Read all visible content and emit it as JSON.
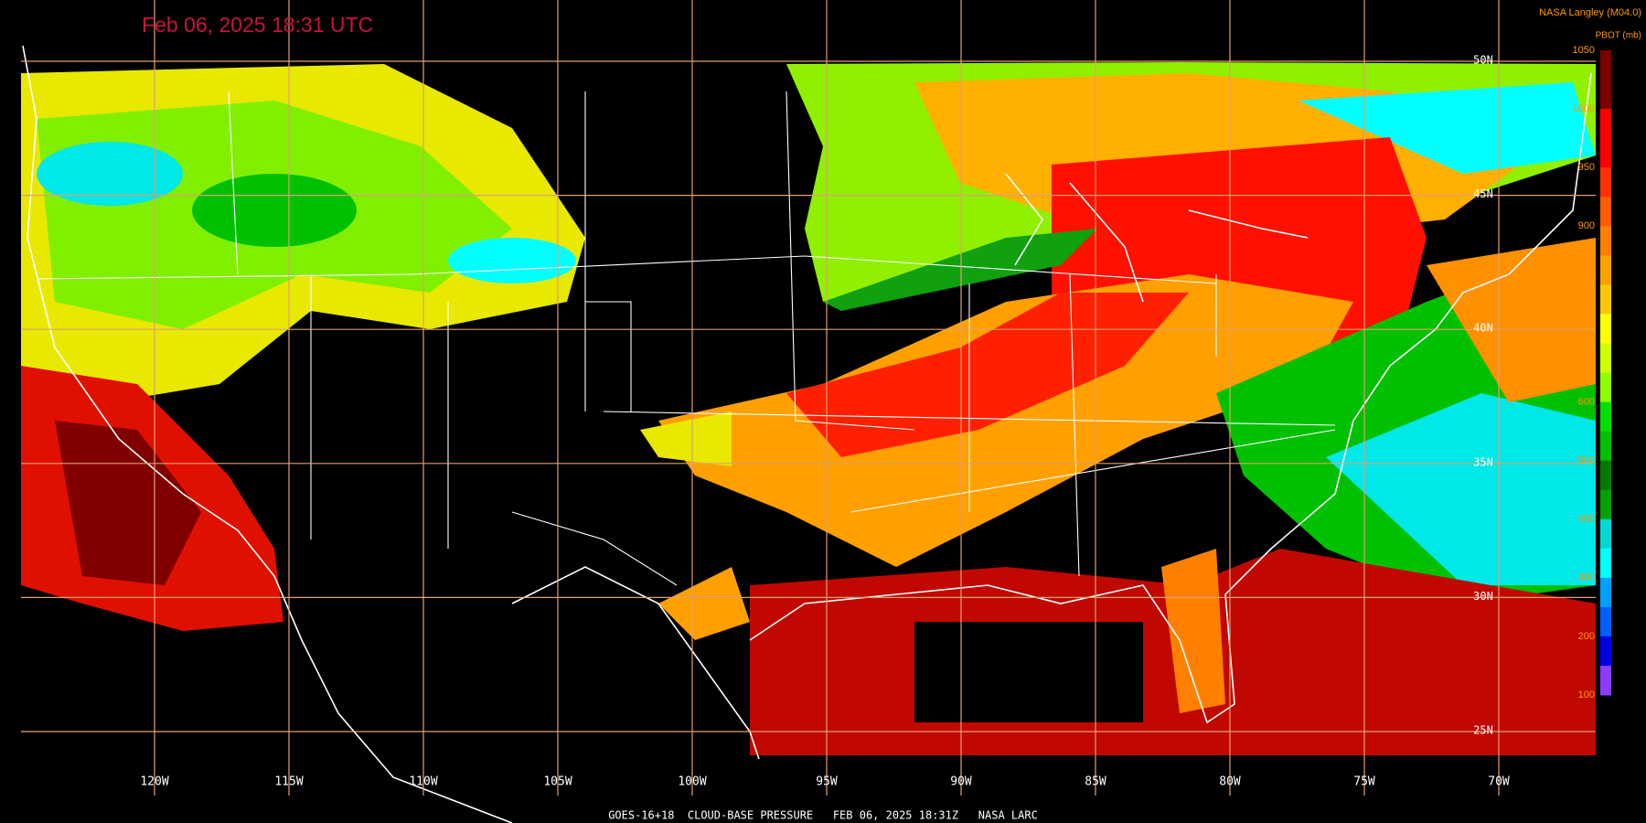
{
  "header": {
    "title": "Feb 06, 2025 18:31 UTC",
    "credit": "NASA Langley (M04.0)"
  },
  "colorbar": {
    "label": "PBOT (mb)",
    "ticks": [
      1050,
      1000,
      950,
      900,
      800,
      700,
      600,
      500,
      400,
      300,
      200,
      100
    ],
    "colors": [
      "#7a0000",
      "#7a0000",
      "#ff0000",
      "#ff0000",
      "#ff3000",
      "#ff5a00",
      "#ff8000",
      "#ffa000",
      "#ffc800",
      "#ffff00",
      "#d0ff00",
      "#90ff00",
      "#00e000",
      "#00c000",
      "#007a00",
      "#00a000",
      "#00d8d8",
      "#00ffff",
      "#00a0ff",
      "#0060ff",
      "#0000e0",
      "#8a3cff"
    ]
  },
  "lon_labels": [
    "120W",
    "115W",
    "110W",
    "105W",
    "100W",
    "95W",
    "90W",
    "85W",
    "80W",
    "75W",
    "70W"
  ],
  "lat_labels": [
    "50N",
    "45N",
    "40N",
    "35N",
    "30N",
    "25N"
  ],
  "footer": "GOES-16+18  CLOUD-BASE PRESSURE   FEB 06, 2025 18:31Z   NASA LARC"
}
